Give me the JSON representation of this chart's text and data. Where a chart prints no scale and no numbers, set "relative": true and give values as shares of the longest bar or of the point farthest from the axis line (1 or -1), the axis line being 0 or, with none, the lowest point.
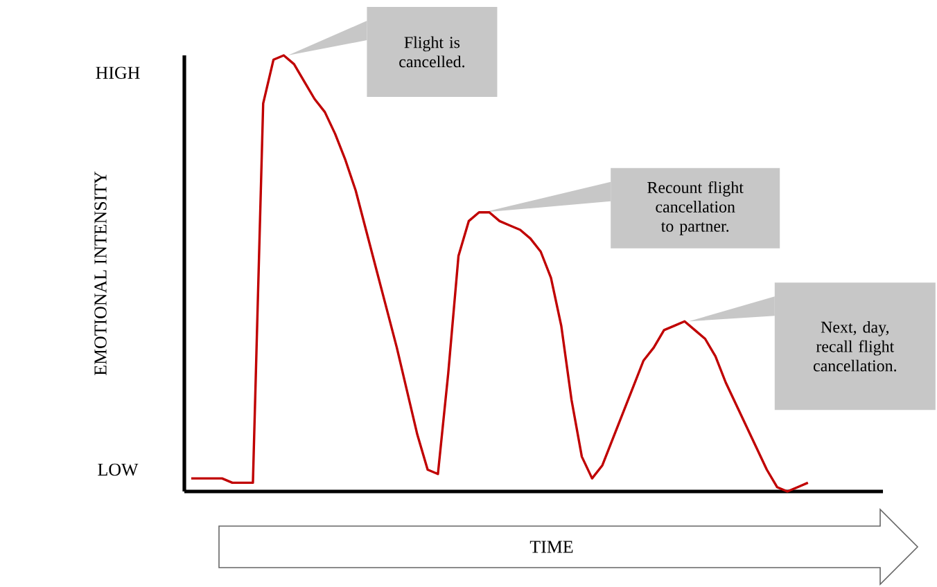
{
  "chart_data": {
    "type": "line",
    "relative": true,
    "xlabel": "TIME",
    "ylabel": "EMOTIONAL INTENSITY",
    "categories": [
      null,
      null,
      null,
      null,
      null,
      null,
      null,
      null,
      null,
      null,
      null,
      null,
      null,
      null,
      null,
      null,
      null,
      null,
      null,
      null,
      null,
      null,
      null,
      null,
      null,
      null,
      null,
      null,
      null,
      null,
      null,
      null,
      null,
      null,
      null,
      null,
      null,
      null,
      null,
      null,
      null,
      null,
      null,
      null,
      null,
      null,
      null,
      null,
      null,
      null,
      null,
      null,
      null,
      null,
      null,
      null,
      null,
      null,
      null,
      null,
      null
    ],
    "series": [
      {
        "color": "#c00000",
        "values": [
          0.03,
          0.03,
          0.03,
          0.03,
          0.02,
          0.02,
          0.02,
          0.89,
          0.99,
          1.0,
          0.98,
          0.94,
          0.9,
          0.87,
          0.82,
          0.76,
          0.69,
          0.6,
          0.51,
          0.42,
          0.33,
          0.23,
          0.13,
          0.05,
          0.04,
          0.27,
          0.54,
          0.62,
          0.64,
          0.64,
          0.62,
          0.61,
          0.6,
          0.58,
          0.55,
          0.49,
          0.38,
          0.21,
          0.08,
          0.03,
          0.06,
          0.12,
          0.18,
          0.24,
          0.3,
          0.33,
          0.37,
          0.38,
          0.39,
          0.37,
          0.35,
          0.31,
          0.25,
          0.2,
          0.15,
          0.1,
          0.05,
          0.01,
          0.0,
          0.01,
          0.02
        ]
      }
    ],
    "annotations": [
      "HIGH",
      "LOW",
      "Flight is cancelled.",
      "Recount flight cancellation to partner.",
      "Next, day, recall flight cancellation."
    ]
  }
}
